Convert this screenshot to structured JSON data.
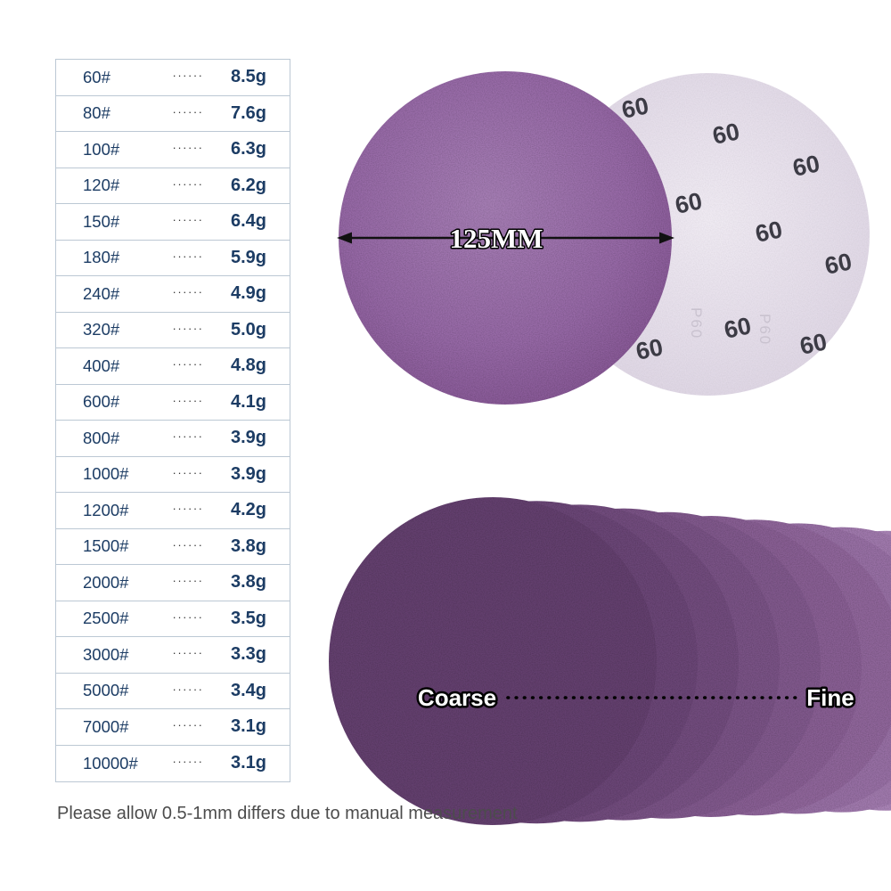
{
  "table": {
    "dots": "······",
    "text_color": "#1c3c64",
    "border_color": "#bcc8d4",
    "rows": [
      {
        "grit": "60#",
        "weight": "8.5g"
      },
      {
        "grit": "80#",
        "weight": "7.6g"
      },
      {
        "grit": "100#",
        "weight": "6.3g"
      },
      {
        "grit": "120#",
        "weight": "6.2g"
      },
      {
        "grit": "150#",
        "weight": "6.4g"
      },
      {
        "grit": "180#",
        "weight": "5.9g"
      },
      {
        "grit": "240#",
        "weight": "4.9g"
      },
      {
        "grit": "320#",
        "weight": "5.0g"
      },
      {
        "grit": "400#",
        "weight": "4.8g"
      },
      {
        "grit": "600#",
        "weight": "4.1g"
      },
      {
        "grit": "800#",
        "weight": "3.9g"
      },
      {
        "grit": "1000#",
        "weight": "3.9g"
      },
      {
        "grit": "1200#",
        "weight": "4.2g"
      },
      {
        "grit": "1500#",
        "weight": "3.8g"
      },
      {
        "grit": "2000#",
        "weight": "3.8g"
      },
      {
        "grit": "2500#",
        "weight": "3.5g"
      },
      {
        "grit": "3000#",
        "weight": "3.3g"
      },
      {
        "grit": "5000#",
        "weight": "3.4g"
      },
      {
        "grit": "7000#",
        "weight": "3.1g"
      },
      {
        "grit": "10000#",
        "weight": "3.1g"
      }
    ]
  },
  "diagram": {
    "diameter_label": "125MM",
    "front_disc_color": "#9769a7",
    "back_disc_color": "#e9e3ed",
    "back_marks": [
      "60",
      "60",
      "60",
      "60",
      "60",
      "60",
      "60",
      "60",
      "60"
    ],
    "back_vertical_marks": [
      "P60",
      "P60"
    ]
  },
  "gradient": {
    "coarse_label": "Coarse",
    "fine_label": "Fine",
    "disc_colors": [
      "#64406f",
      "#6b4677",
      "#724c7e",
      "#7a5386",
      "#81598d",
      "#895f94",
      "#90669b",
      "#9870a5",
      "#a17aae",
      "#ab85b8",
      "#b591c2"
    ]
  },
  "footnote": {
    "text": "Please allow 0.5-1mm differs due to manual measurement"
  }
}
